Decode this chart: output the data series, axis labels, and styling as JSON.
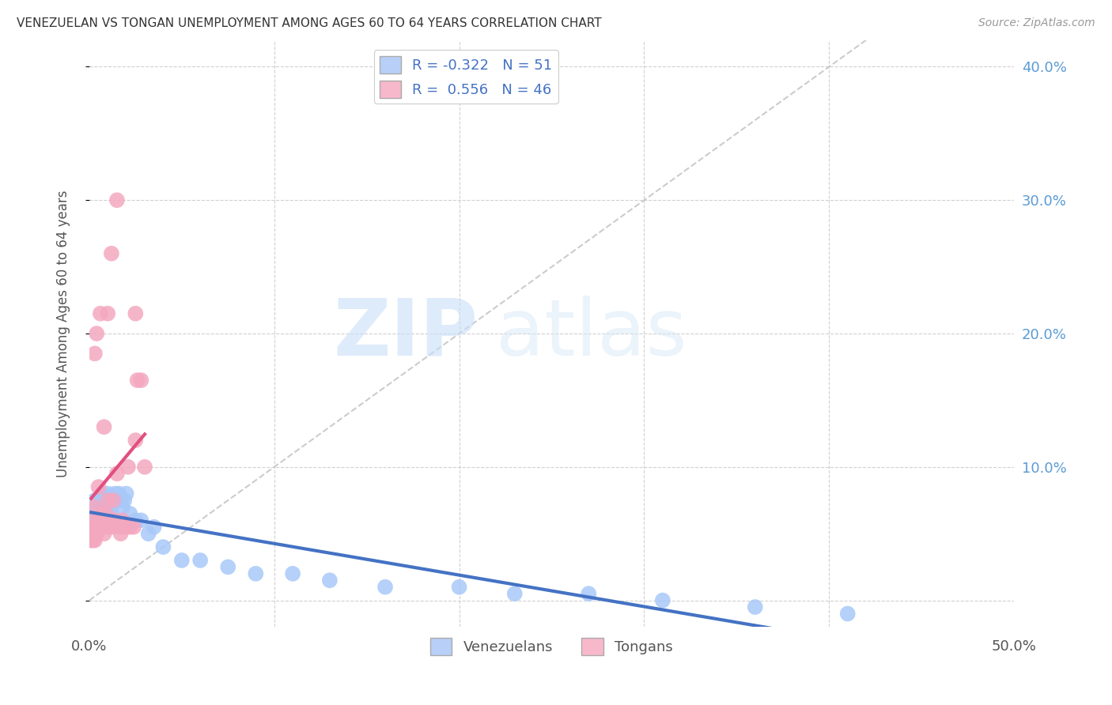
{
  "title": "VENEZUELAN VS TONGAN UNEMPLOYMENT AMONG AGES 60 TO 64 YEARS CORRELATION CHART",
  "source": "Source: ZipAtlas.com",
  "ylabel": "Unemployment Among Ages 60 to 64 years",
  "xlim": [
    0.0,
    0.5
  ],
  "ylim": [
    -0.02,
    0.42
  ],
  "xticks": [
    0.0,
    0.1,
    0.2,
    0.3,
    0.4,
    0.5
  ],
  "xticklabels": [
    "0.0%",
    "",
    "",
    "",
    "",
    "50.0%"
  ],
  "yticks": [
    0.0,
    0.1,
    0.2,
    0.3,
    0.4
  ],
  "yticklabels_right": [
    "",
    "10.0%",
    "20.0%",
    "30.0%",
    "40.0%"
  ],
  "venezuelan_color": "#a8c8f8",
  "tongan_color": "#f4a8c0",
  "r_venezuelan": -0.322,
  "n_venezuelan": 51,
  "r_tongan": 0.556,
  "n_tongan": 46,
  "diagonal_line_color": "#cccccc",
  "trend_venezuelan_color": "#4472c4",
  "trend_tongan_color": "#e05080",
  "watermark_zip": "ZIP",
  "watermark_atlas": "atlas",
  "background_color": "#ffffff",
  "venezuelan_x": [
    0.001,
    0.002,
    0.003,
    0.004,
    0.004,
    0.005,
    0.005,
    0.006,
    0.006,
    0.007,
    0.007,
    0.008,
    0.008,
    0.009,
    0.009,
    0.01,
    0.01,
    0.011,
    0.011,
    0.012,
    0.013,
    0.013,
    0.014,
    0.015,
    0.016,
    0.017,
    0.018,
    0.019,
    0.02,
    0.022,
    0.025,
    0.028,
    0.032,
    0.035,
    0.04,
    0.05,
    0.06,
    0.075,
    0.09,
    0.11,
    0.13,
    0.16,
    0.2,
    0.23,
    0.27,
    0.31,
    0.36,
    0.41,
    0.003,
    0.006,
    0.012
  ],
  "venezuelan_y": [
    0.065,
    0.055,
    0.06,
    0.07,
    0.05,
    0.075,
    0.06,
    0.065,
    0.055,
    0.08,
    0.06,
    0.075,
    0.055,
    0.065,
    0.07,
    0.08,
    0.065,
    0.07,
    0.075,
    0.065,
    0.075,
    0.06,
    0.08,
    0.075,
    0.08,
    0.075,
    0.07,
    0.075,
    0.08,
    0.065,
    0.06,
    0.06,
    0.05,
    0.055,
    0.04,
    0.03,
    0.03,
    0.025,
    0.02,
    0.02,
    0.015,
    0.01,
    0.01,
    0.005,
    0.005,
    0.0,
    -0.005,
    -0.01,
    0.075,
    0.065,
    0.07
  ],
  "tongan_x": [
    0.001,
    0.001,
    0.002,
    0.002,
    0.003,
    0.003,
    0.004,
    0.004,
    0.005,
    0.005,
    0.006,
    0.006,
    0.007,
    0.007,
    0.008,
    0.008,
    0.009,
    0.009,
    0.01,
    0.01,
    0.011,
    0.012,
    0.013,
    0.013,
    0.014,
    0.015,
    0.016,
    0.017,
    0.018,
    0.019,
    0.02,
    0.021,
    0.022,
    0.024,
    0.025,
    0.026,
    0.028,
    0.03,
    0.025,
    0.003,
    0.004,
    0.006,
    0.008,
    0.01,
    0.012,
    0.015
  ],
  "tongan_y": [
    0.045,
    0.055,
    0.045,
    0.06,
    0.045,
    0.07,
    0.055,
    0.05,
    0.06,
    0.085,
    0.055,
    0.06,
    0.065,
    0.055,
    0.05,
    0.06,
    0.065,
    0.06,
    0.075,
    0.06,
    0.055,
    0.055,
    0.06,
    0.075,
    0.06,
    0.095,
    0.055,
    0.05,
    0.06,
    0.055,
    0.055,
    0.1,
    0.055,
    0.055,
    0.12,
    0.165,
    0.165,
    0.1,
    0.215,
    0.185,
    0.2,
    0.215,
    0.13,
    0.215,
    0.26,
    0.3
  ],
  "tongan_trend_x0": 0.001,
  "tongan_trend_x1": 0.03,
  "venezuelan_trend_x0": 0.001,
  "venezuelan_trend_x1": 0.46
}
